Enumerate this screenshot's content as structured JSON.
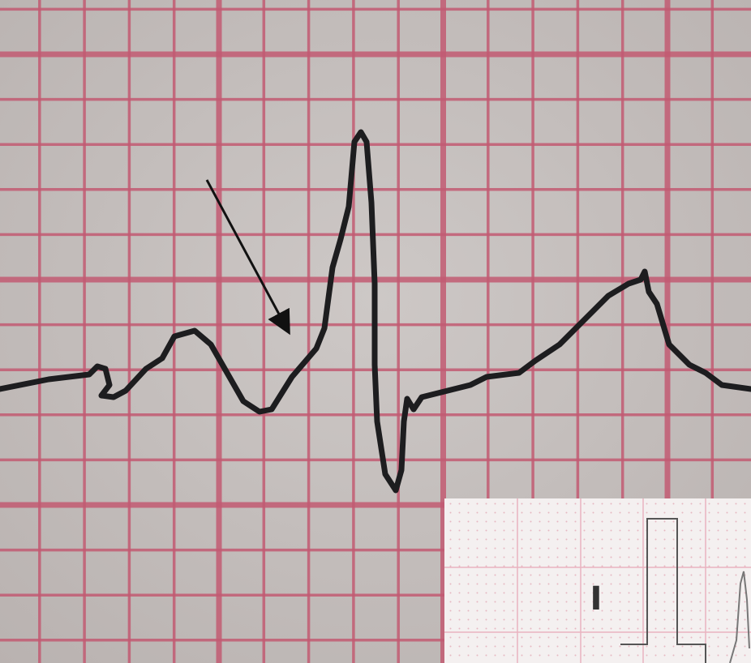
{
  "inset": {
    "lead_label": "I"
  }
}
